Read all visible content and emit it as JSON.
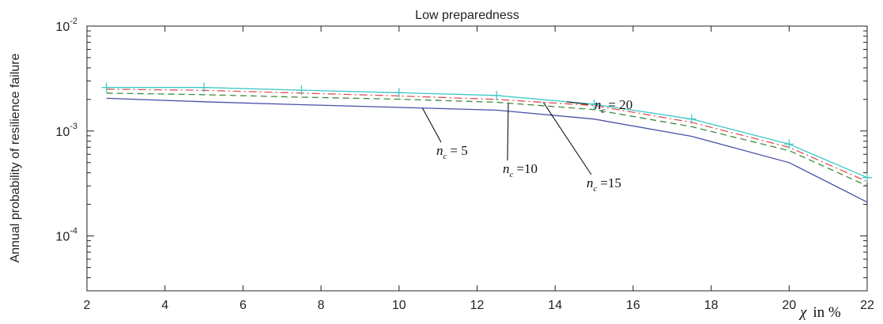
{
  "chart_data": {
    "type": "line",
    "title": "Low preparedness",
    "ylabel": "Annual probability of resilience failure",
    "xlabel": {
      "symbol": "χ",
      "unit": "in %"
    },
    "xlim": [
      2,
      22
    ],
    "ylim": [
      3e-05,
      0.01
    ],
    "yscale": "log",
    "x_ticks": [
      "2",
      "4",
      "6",
      "8",
      "10",
      "12",
      "14",
      "16",
      "18",
      "20",
      "22"
    ],
    "y_ticks": [
      {
        "base": "10",
        "exp": "-2",
        "value": 0.01
      },
      {
        "base": "10",
        "exp": "-3",
        "value": 0.001
      },
      {
        "base": "10",
        "exp": "-4",
        "value": 0.0001
      }
    ],
    "x": [
      2.5,
      5,
      7.5,
      10,
      12.5,
      15,
      17.5,
      20,
      22
    ],
    "series": [
      {
        "name": "n_c = 5",
        "color": "#4a4fa8",
        "dash": "solid",
        "marker": "none",
        "values": [
          0.00205,
          0.0019,
          0.00178,
          0.00168,
          0.00158,
          0.0013,
          0.00089,
          0.0005,
          0.00021
        ]
      },
      {
        "name": "n_c = 10",
        "color": "#3c8c3c",
        "dash": "dashed",
        "marker": "none",
        "values": [
          0.0023,
          0.00222,
          0.0021,
          0.00201,
          0.00188,
          0.0016,
          0.0011,
          0.00065,
          0.0003
        ]
      },
      {
        "name": "n_c = 15",
        "color": "#e05050",
        "dash": "dashdot",
        "marker": "none",
        "values": [
          0.0025,
          0.00244,
          0.0023,
          0.00216,
          0.002,
          0.00175,
          0.00121,
          0.0007,
          0.00033
        ]
      },
      {
        "name": "n_c = 20",
        "color": "#3fc7c7",
        "dash": "solid",
        "marker": "plus",
        "values": [
          0.0026,
          0.0026,
          0.00245,
          0.00232,
          0.00218,
          0.0018,
          0.0013,
          0.00075,
          0.00036
        ]
      }
    ],
    "annotations": [
      {
        "n": "n",
        "sub": "c",
        "text": "= 5",
        "series": 0,
        "anchor_x": 10.6
      },
      {
        "n": "n",
        "sub": "c",
        "text": "=10",
        "series": 1,
        "anchor_x": 12.8
      },
      {
        "n": "n",
        "sub": "c",
        "text": "=15",
        "series": 2,
        "anchor_x": 13.7
      },
      {
        "n": "n",
        "sub": "c",
        "text": "= 20",
        "series": 3,
        "anchor_x": 14.3
      }
    ],
    "grid": false,
    "legend": "none"
  }
}
